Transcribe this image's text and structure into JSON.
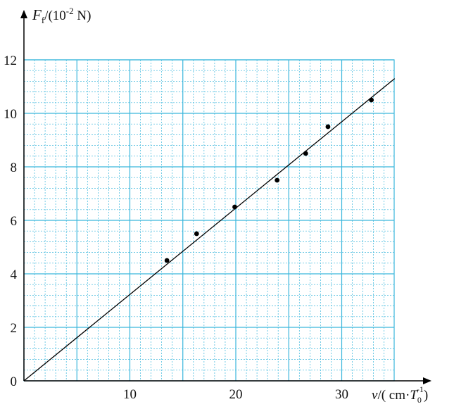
{
  "chart_data": {
    "type": "scatter",
    "x_ticks": [
      "10",
      "20",
      "30"
    ],
    "y_ticks": [
      "0",
      "2",
      "4",
      "6",
      "8",
      "10",
      "12"
    ],
    "xlim": [
      0,
      35
    ],
    "ylim": [
      0,
      12
    ],
    "xlabel": {
      "var": "v",
      "pre": "/( cm·",
      "sym": "T",
      "sub": "0",
      "sup": "-1",
      "post": ")"
    },
    "ylabel": {
      "var": "F",
      "sub": "f",
      "pre": "/(10",
      "sup": "-2",
      "post": " N)"
    },
    "grid": "major and minor",
    "grid_color": "#3ab6dc",
    "points": [
      {
        "x": 13.5,
        "y": 4.5
      },
      {
        "x": 16.3,
        "y": 5.5
      },
      {
        "x": 19.9,
        "y": 6.5
      },
      {
        "x": 23.9,
        "y": 7.5
      },
      {
        "x": 26.6,
        "y": 8.5
      },
      {
        "x": 28.7,
        "y": 9.5
      },
      {
        "x": 32.8,
        "y": 10.5
      }
    ],
    "fit_line": {
      "x": [
        0,
        35
      ],
      "y": [
        0,
        11.3
      ]
    }
  }
}
